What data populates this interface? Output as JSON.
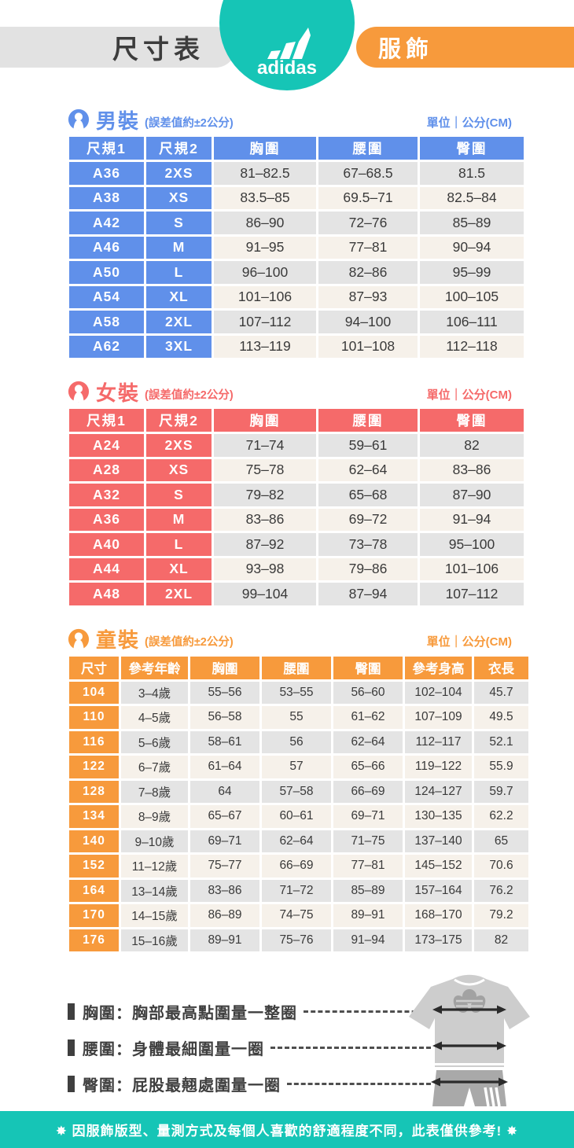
{
  "header": {
    "title": "尺寸表",
    "brand": "adidas",
    "category": "服飾"
  },
  "colors": {
    "men_accent": "#6090ea",
    "women_accent": "#f56a6a",
    "kids_accent": "#f79a3c",
    "teal": "#16c5b6",
    "row_gray": "#e4e4e4",
    "row_beige": "#f6f1ea"
  },
  "sections": [
    {
      "title": "男裝",
      "tolerance": "(誤差值約±2公分)",
      "unit": "單位｜公分(CM)",
      "accent": "#6090ea",
      "key_cols": 2,
      "columns": [
        "尺規1",
        "尺規2",
        "胸圍",
        "腰圍",
        "臀圍"
      ],
      "rows": [
        [
          "A36",
          "2XS",
          "81–82.5",
          "67–68.5",
          "81.5"
        ],
        [
          "A38",
          "XS",
          "83.5–85",
          "69.5–71",
          "82.5–84"
        ],
        [
          "A42",
          "S",
          "86–90",
          "72–76",
          "85–89"
        ],
        [
          "A46",
          "M",
          "91–95",
          "77–81",
          "90–94"
        ],
        [
          "A50",
          "L",
          "96–100",
          "82–86",
          "95–99"
        ],
        [
          "A54",
          "XL",
          "101–106",
          "87–93",
          "100–105"
        ],
        [
          "A58",
          "2XL",
          "107–112",
          "94–100",
          "106–111"
        ],
        [
          "A62",
          "3XL",
          "113–119",
          "101–108",
          "112–118"
        ]
      ]
    },
    {
      "title": "女裝",
      "tolerance": "(誤差值約±2公分)",
      "unit": "單位｜公分(CM)",
      "accent": "#f56a6a",
      "key_cols": 2,
      "columns": [
        "尺規1",
        "尺規2",
        "胸圍",
        "腰圍",
        "臀圍"
      ],
      "rows": [
        [
          "A24",
          "2XS",
          "71–74",
          "59–61",
          "82"
        ],
        [
          "A28",
          "XS",
          "75–78",
          "62–64",
          "83–86"
        ],
        [
          "A32",
          "S",
          "79–82",
          "65–68",
          "87–90"
        ],
        [
          "A36",
          "M",
          "83–86",
          "69–72",
          "91–94"
        ],
        [
          "A40",
          "L",
          "87–92",
          "73–78",
          "95–100"
        ],
        [
          "A44",
          "XL",
          "93–98",
          "79–86",
          "101–106"
        ],
        [
          "A48",
          "2XL",
          "99–104",
          "87–94",
          "107–112"
        ]
      ]
    },
    {
      "title": "童裝",
      "tolerance": "(誤差值約±2公分)",
      "unit": "單位｜公分(CM)",
      "accent": "#f79a3c",
      "key_cols": 1,
      "columns": [
        "尺寸",
        "參考年齡",
        "胸圍",
        "腰圍",
        "臀圍",
        "參考身高",
        "衣長"
      ],
      "rows": [
        [
          "104",
          "3–4歲",
          "55–56",
          "53–55",
          "56–60",
          "102–104",
          "45.7"
        ],
        [
          "110",
          "4–5歲",
          "56–58",
          "55",
          "61–62",
          "107–109",
          "49.5"
        ],
        [
          "116",
          "5–6歲",
          "58–61",
          "56",
          "62–64",
          "112–117",
          "52.1"
        ],
        [
          "122",
          "6–7歲",
          "61–64",
          "57",
          "65–66",
          "119–122",
          "55.9"
        ],
        [
          "128",
          "7–8歲",
          "64",
          "57–58",
          "66–69",
          "124–127",
          "59.7"
        ],
        [
          "134",
          "8–9歲",
          "65–67",
          "60–61",
          "69–71",
          "130–135",
          "62.2"
        ],
        [
          "140",
          "9–10歲",
          "69–71",
          "62–64",
          "71–75",
          "137–140",
          "65"
        ],
        [
          "152",
          "11–12歲",
          "75–77",
          "66–69",
          "77–81",
          "145–152",
          "70.6"
        ],
        [
          "164",
          "13–14歲",
          "83–86",
          "71–72",
          "85–89",
          "157–164",
          "76.2"
        ],
        [
          "170",
          "14–15歲",
          "86–89",
          "74–75",
          "89–91",
          "168–170",
          "79.2"
        ],
        [
          "176",
          "15–16歲",
          "89–91",
          "75–76",
          "91–94",
          "173–175",
          "82"
        ]
      ]
    }
  ],
  "legend": {
    "items": [
      {
        "label": "胸圍：胸部最高點圍量一整圈"
      },
      {
        "label": "腰圍：身體最細圍量一圈"
      },
      {
        "label": "臀圍：屁股最翹處圍量一圈"
      }
    ]
  },
  "footer": {
    "note": "✸ 因服飾版型、量測方式及每個人喜歡的舒適程度不同，此表僅供參考! ✸"
  }
}
